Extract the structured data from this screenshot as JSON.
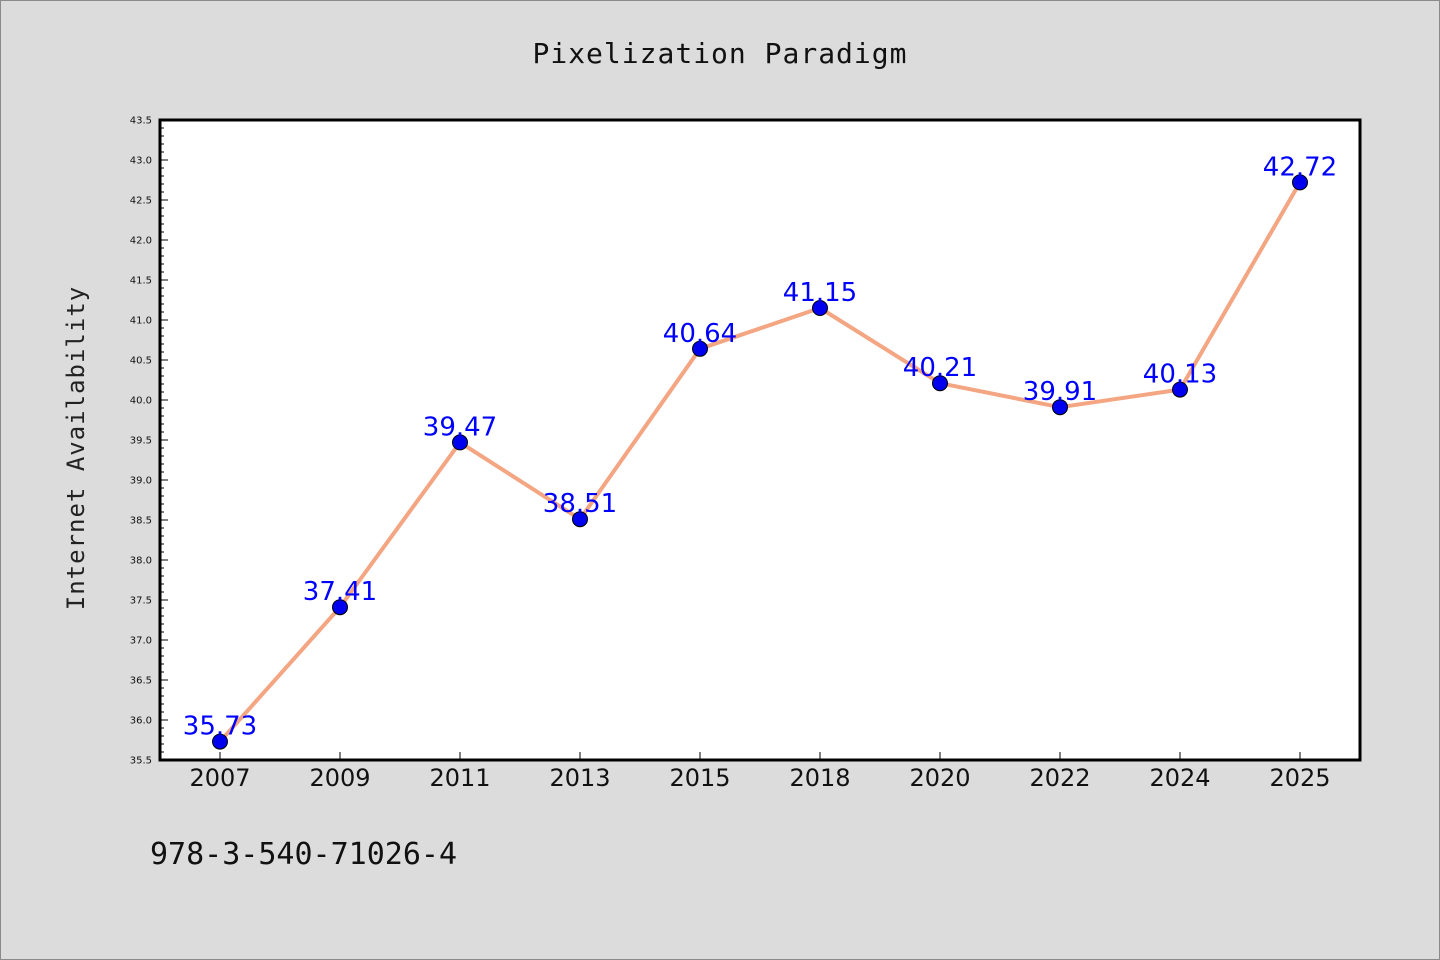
{
  "chart_data": {
    "type": "line",
    "title": "Pixelization Paradigm",
    "xlabel": "",
    "ylabel": "Internet Availability",
    "categories": [
      "2007",
      "2009",
      "2011",
      "2013",
      "2015",
      "2018",
      "2020",
      "2022",
      "2024",
      "2025"
    ],
    "series": [
      {
        "values": [
          35.73,
          37.41,
          39.47,
          38.51,
          40.64,
          41.15,
          40.21,
          39.91,
          40.13,
          42.72
        ],
        "data_labels": [
          "35.73",
          "37.41",
          "39.47",
          "38.51",
          "40.64",
          "41.15",
          "40.21",
          "39.91",
          "40.13",
          "42.72"
        ],
        "line_color": "#f4a582",
        "marker_color": "#0000ee"
      }
    ],
    "ylim": [
      35.5,
      43.5
    ],
    "yticks": [
      "35.5",
      "36.0",
      "36.5",
      "37.0",
      "37.5",
      "38.0",
      "38.5",
      "39.0",
      "39.5",
      "40.0",
      "40.5",
      "41.0",
      "41.5",
      "42.0",
      "42.5",
      "43.0",
      "43.5"
    ],
    "grid": false,
    "legend": false
  },
  "footer": {
    "text": "978-3-540-71026-4"
  }
}
